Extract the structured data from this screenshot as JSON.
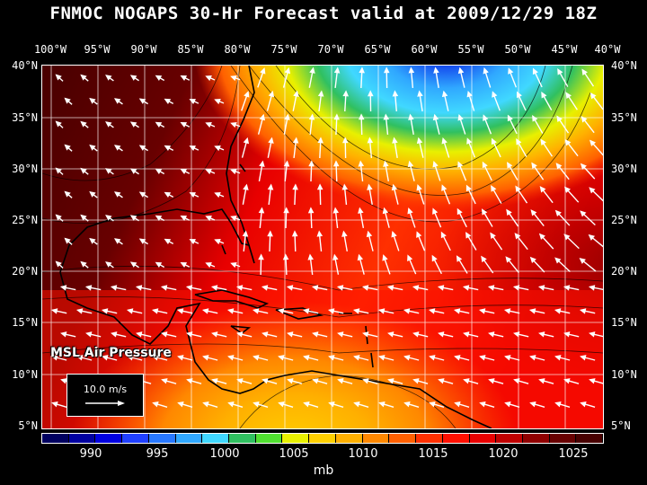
{
  "title": "FNMOC NOGAPS 30-Hr Forecast valid at 2009/12/29 18Z",
  "lon_labels": [
    "100°W",
    "95°W",
    "90°W",
    "85°W",
    "80°W",
    "75°W",
    "70°W",
    "65°W",
    "60°W",
    "55°W",
    "50°W",
    "45°W",
    "40°W"
  ],
  "lat_labels": [
    "40°N",
    "35°N",
    "30°N",
    "25°N",
    "20°N",
    "15°N",
    "10°N",
    "5°N"
  ],
  "field_label": "MSL Air Pressure",
  "vector_reference": "10.0 m/s",
  "colorbar": {
    "colors": [
      "#000060",
      "#0000a0",
      "#0000e0",
      "#2040ff",
      "#2878ff",
      "#30a8ff",
      "#40d8ff",
      "#30c060",
      "#50e030",
      "#e8f000",
      "#ffd000",
      "#ffb000",
      "#ff8800",
      "#ff6000",
      "#ff3000",
      "#ff1000",
      "#e80000",
      "#c00000",
      "#900000",
      "#680000",
      "#480000"
    ],
    "tick_labels": [
      "990",
      "995",
      "1000",
      "1005",
      "1010",
      "1015",
      "1020",
      "1025"
    ],
    "unit": "mb"
  },
  "arrow_color": "#ffffff"
}
